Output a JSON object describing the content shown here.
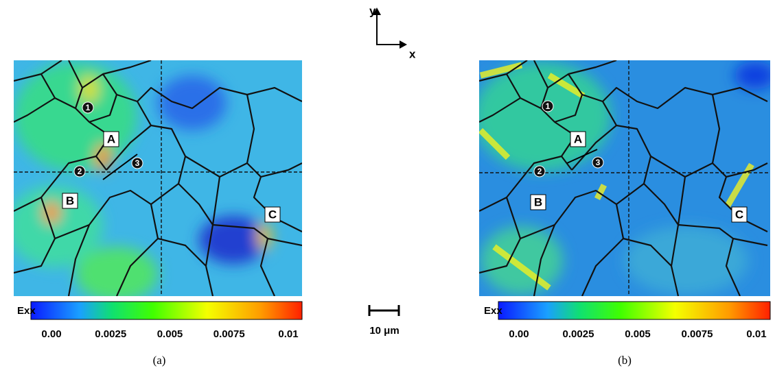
{
  "axes": {
    "x": "x",
    "y": "y"
  },
  "scale_bar": "10 μm",
  "panels": [
    {
      "caption": "(a)",
      "labels": [
        "A",
        "B",
        "C"
      ],
      "points": [
        "1",
        "2",
        "3"
      ],
      "colorbar": {
        "label": "Exx",
        "range": [
          0,
          0.01
        ],
        "ticks": [
          {
            "value": 0,
            "label": "0.00"
          },
          0.0025,
          0.005,
          0.0075,
          0.01
        ]
      }
    },
    {
      "caption": "(b)",
      "labels": [
        "A",
        "B",
        "C"
      ],
      "points": [
        "1",
        "2",
        "3"
      ],
      "colorbar": {
        "label": "Exx",
        "range": [
          0,
          0.01
        ],
        "ticks": [
          {
            "value": 0,
            "label": "0.00"
          },
          0.0025,
          0.005,
          0.0075,
          0.01
        ]
      }
    }
  ]
}
